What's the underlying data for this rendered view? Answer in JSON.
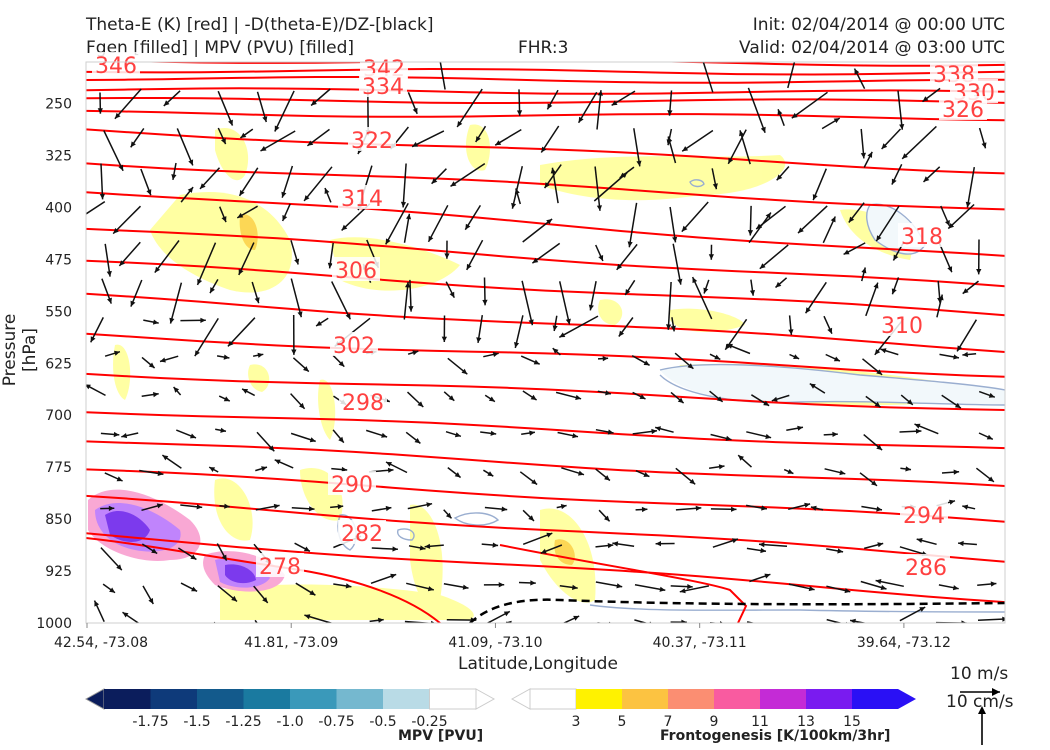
{
  "header": {
    "title_line1": "Theta-E (K) [red] | -D(theta-E)/DZ-[black]",
    "title_line2": "Fgen [filled] | MPV (PVU) [filled]",
    "fhr": "FHR:3",
    "init": "Init: 02/04/2014 @ 00:00 UTC",
    "valid": "Valid: 02/04/2014 @ 03:00 UTC"
  },
  "chart_data": {
    "type": "cross-section",
    "xlabel": "Latitude,Longitude",
    "ylabel": "Pressure [hPa]",
    "x_ticks": [
      "42.54, -73.08",
      "41.81, -73.09",
      "41.09, -73.10",
      "40.37, -73.11",
      "39.64, -73.12"
    ],
    "y_ticks": [
      250,
      325,
      400,
      475,
      550,
      625,
      700,
      775,
      850,
      925,
      1000
    ],
    "ylim": [
      1000,
      190
    ],
    "theta_e_labels": [
      346,
      342,
      338,
      334,
      330,
      326,
      322,
      318,
      314,
      310,
      306,
      302,
      298,
      294,
      290,
      286,
      282,
      278
    ],
    "mpv_colorbar": {
      "label": "MPV [PVU]",
      "ticks": [
        "-1.75",
        "-1.5",
        "-1.25",
        "-1.0",
        "-0.75",
        "-0.5",
        "-0.25"
      ]
    },
    "fgen_colorbar": {
      "label": "Frontogenesis [K/100km/3hr]",
      "ticks": [
        "3",
        "5",
        "7",
        "9",
        "11",
        "13",
        "15"
      ]
    },
    "wind_reference": {
      "horizontal": "10 m/s",
      "vertical": "10 cm/s"
    },
    "colors": {
      "theta_e": "#ff0000",
      "label": "#ff4040",
      "arrows": "#111111"
    }
  }
}
